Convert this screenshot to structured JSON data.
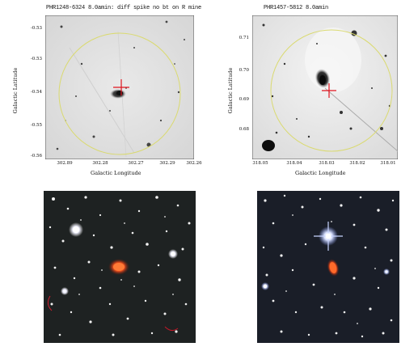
{
  "panels": [
    {
      "title": "PHR1248-6324 8.0amin: diff spike no bt on R mine",
      "xlabel": "Galactic Longitude",
      "ylabel": "Galactic Latitude",
      "xticks": [
        "302.89",
        "302.28",
        "302.27",
        "302.29",
        "302.26"
      ],
      "yticks": [
        "-0.53",
        "-0.53",
        "-0.54",
        "-0.55",
        "-0.56"
      ]
    },
    {
      "title": "PHR1457-5812 8.0amin",
      "xlabel": "Galactic Longitude",
      "ylabel": "Galactic Latitude",
      "xticks": [
        "318.05",
        "318.04",
        "318.03",
        "318.02",
        "318.01"
      ],
      "yticks": [
        "0.71",
        "0.70",
        "0.69",
        "0.68"
      ]
    }
  ],
  "colors": {
    "ellipse": "#dada70",
    "marker": "#e0141e",
    "nebula": "#e24a1c"
  }
}
